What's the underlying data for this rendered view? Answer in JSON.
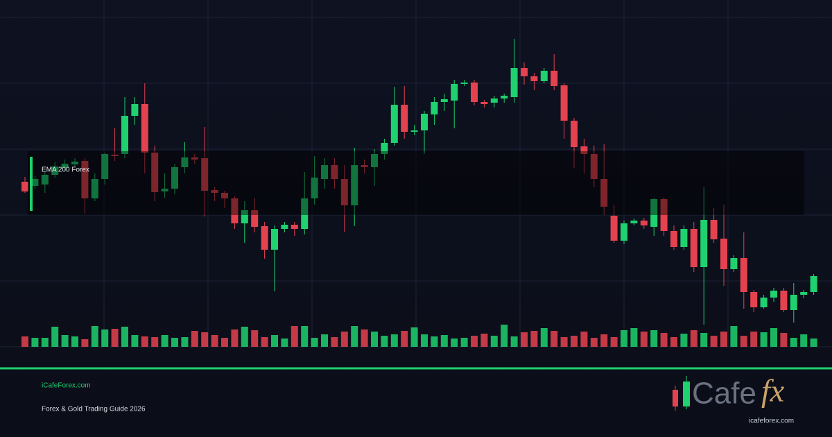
{
  "chart_data": {
    "type": "candlestick",
    "annotation": "EMA 200 Forex",
    "up_color": "#1fd16f",
    "down_color": "#e5424f",
    "ylim": [
      0,
      500
    ],
    "yticks": [
      0,
      95,
      190,
      285,
      380,
      475
    ],
    "grid": true,
    "volume_lim": [
      0,
      60
    ],
    "open": [
      238,
      232,
      234,
      248,
      258,
      263,
      268,
      214,
      242,
      277,
      278,
      333,
      350,
      280,
      224,
      228,
      259,
      273,
      272,
      226,
      222,
      214,
      178,
      197,
      174,
      140,
      170,
      176,
      170,
      214,
      242,
      262,
      242,
      204,
      262,
      259,
      278,
      294,
      349,
      310,
      312,
      335,
      353,
      355,
      379,
      381,
      353,
      352,
      358,
      360,
      402,
      390,
      383,
      398,
      377,
      326,
      289,
      278,
      242,
      189,
      153,
      178,
      182,
      173,
      213,
      167,
      144,
      170,
      115,
      183,
      156,
      112,
      128,
      79,
      57,
      71,
      81,
      53,
      75,
      79
    ],
    "high": [
      245,
      246,
      252,
      266,
      270,
      272,
      272,
      250,
      280,
      315,
      360,
      360,
      380,
      290,
      250,
      264,
      295,
      278,
      317,
      230,
      225,
      217,
      210,
      215,
      180,
      175,
      180,
      180,
      252,
      275,
      272,
      272,
      262,
      287,
      270,
      285,
      300,
      375,
      376,
      320,
      340,
      360,
      365,
      385,
      385,
      385,
      356,
      362,
      365,
      444,
      410,
      395,
      402,
      422,
      380,
      330,
      300,
      290,
      292,
      205,
      182,
      185,
      186,
      215,
      215,
      175,
      175,
      180,
      230,
      200,
      205,
      132,
      165,
      82,
      75,
      85,
      85,
      92,
      82,
      105
    ],
    "low": [
      222,
      228,
      222,
      244,
      254,
      260,
      192,
      210,
      234,
      268,
      272,
      320,
      250,
      210,
      215,
      220,
      250,
      264,
      188,
      210,
      200,
      170,
      150,
      165,
      127,
      80,
      165,
      160,
      162,
      205,
      228,
      228,
      166,
      174,
      250,
      232,
      270,
      290,
      300,
      305,
      278,
      320,
      340,
      315,
      376,
      348,
      345,
      345,
      352,
      352,
      378,
      370,
      380,
      370,
      300,
      258,
      250,
      230,
      190,
      150,
      148,
      175,
      170,
      160,
      160,
      140,
      140,
      108,
      32,
      150,
      88,
      108,
      55,
      50,
      55,
      65,
      50,
      35,
      70,
      75
    ],
    "close": [
      224,
      242,
      248,
      260,
      264,
      267,
      214,
      242,
      278,
      275,
      333,
      350,
      280,
      223,
      228,
      259,
      273,
      270,
      225,
      222,
      214,
      178,
      197,
      173,
      140,
      170,
      176,
      170,
      214,
      244,
      262,
      242,
      204,
      262,
      259,
      278,
      294,
      349,
      310,
      312,
      336,
      353,
      357,
      379,
      381,
      353,
      350,
      358,
      362,
      402,
      390,
      383,
      398,
      376,
      326,
      288,
      278,
      242,
      202,
      153,
      178,
      182,
      175,
      213,
      167,
      144,
      170,
      115,
      183,
      155,
      112,
      128,
      79,
      57,
      71,
      81,
      53,
      75,
      79,
      102
    ],
    "volume": [
      15,
      13,
      13,
      29,
      17,
      15,
      11,
      30,
      25,
      26,
      29,
      17,
      15,
      14,
      17,
      13,
      14,
      23,
      21,
      17,
      13,
      25,
      29,
      24,
      14,
      17,
      12,
      30,
      30,
      13,
      18,
      14,
      22,
      30,
      25,
      22,
      16,
      18,
      23,
      28,
      18,
      15,
      17,
      12,
      13,
      16,
      19,
      16,
      32,
      15,
      21,
      23,
      27,
      23,
      14,
      16,
      22,
      13,
      18,
      14,
      24,
      27,
      22,
      24,
      20,
      14,
      19,
      24,
      20,
      16,
      22,
      30,
      16,
      22,
      21,
      27,
      20,
      13,
      18,
      12
    ]
  },
  "footer": {
    "site": "iCafeForex.com",
    "tagline": "Forex & Gold Trading Guide 2026",
    "logo_word": "Cafe",
    "logo_fx": "fx",
    "logo_url": "icafeforex.com"
  }
}
